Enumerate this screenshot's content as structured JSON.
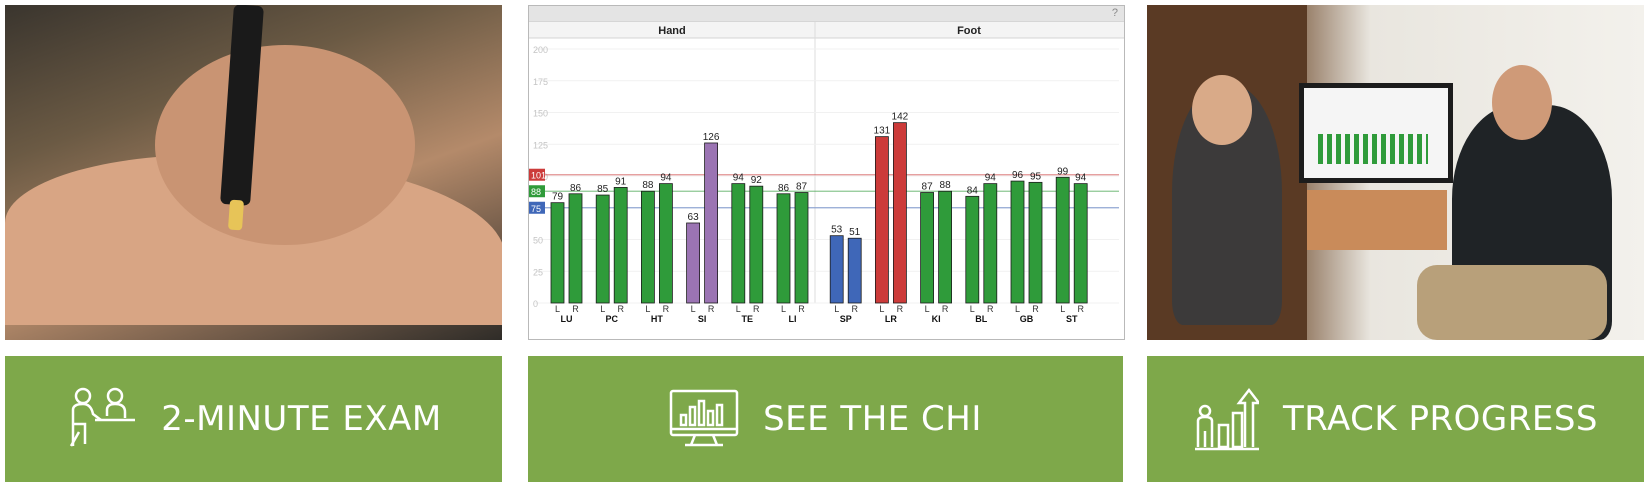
{
  "chart_data": {
    "type": "bar",
    "groups": [
      "Hand",
      "Foot"
    ],
    "categories": [
      "LU",
      "PC",
      "HT",
      "SI",
      "TE",
      "LI",
      "SP",
      "LR",
      "KI",
      "BL",
      "GB",
      "ST"
    ],
    "sub_labels": [
      "L",
      "R"
    ],
    "y_ticks": [
      0,
      25,
      50,
      75,
      100,
      125,
      150,
      175,
      200
    ],
    "ylim": [
      0,
      200
    ],
    "values": [
      [
        79,
        86
      ],
      [
        85,
        91
      ],
      [
        88,
        94
      ],
      [
        63,
        126
      ],
      [
        94,
        92
      ],
      [
        86,
        87
      ],
      [
        53,
        51
      ],
      [
        131,
        142
      ],
      [
        87,
        88
      ],
      [
        84,
        94
      ],
      [
        96,
        95
      ],
      [
        99,
        94
      ]
    ],
    "bar_colors": [
      "#2f9b3a",
      "#2f9b3a",
      "#2f9b3a",
      "#9b74b3",
      "#2f9b3a",
      "#2f9b3a",
      "#3f67b8",
      "#cc3b3a",
      "#2f9b3a",
      "#2f9b3a",
      "#2f9b3a",
      "#2f9b3a"
    ],
    "reference_lines": [
      {
        "label": "101",
        "value": 101,
        "color": "#cc3b3a"
      },
      {
        "label": "88",
        "value": 88,
        "color": "#2f9b3a"
      },
      {
        "label": "75",
        "value": 75,
        "color": "#3f67b8"
      }
    ],
    "help_icon": "?"
  },
  "banners": [
    {
      "label": "2-MINUTE EXAM",
      "icon": "exam-icon"
    },
    {
      "label": "SEE THE CHI",
      "icon": "monitor-chart-icon"
    },
    {
      "label": "TRACK PROGRESS",
      "icon": "progress-arrow-icon"
    }
  ],
  "photos": [
    {
      "name": "hand-test-photo"
    },
    {
      "name": "consultation-photo"
    }
  ],
  "colors": {
    "banner": "#7ea84a",
    "text": "#ffffff"
  }
}
